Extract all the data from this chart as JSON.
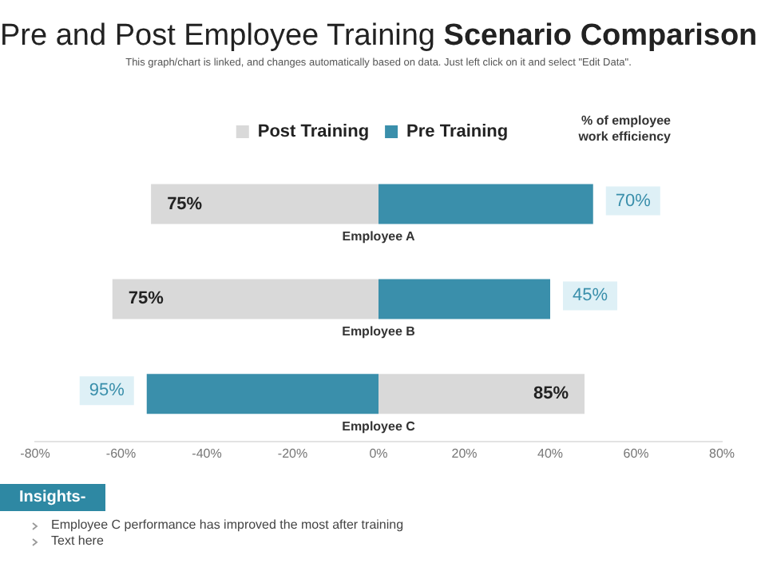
{
  "chart_data": {
    "type": "bar",
    "orientation": "horizontal",
    "stacked": true,
    "title": "Pre and Post Employee Training Scenario Comparison",
    "subtitle": "This graph/chart is linked, and changes automatically based on data. Just left click on it and select \"Edit Data\".",
    "categories": [
      "Employee A",
      "Employee B",
      "Employee C"
    ],
    "series": [
      {
        "name": "Post Training",
        "color": "#d9d9d9",
        "values": [
          -53,
          -62,
          48
        ]
      },
      {
        "name": "Pre Training",
        "color": "#3a8fab",
        "values": [
          50,
          40,
          -54
        ]
      }
    ],
    "xlim": [
      -80,
      80
    ],
    "xticks": [
      {
        "value": -80,
        "label": "-80%"
      },
      {
        "value": -60,
        "label": "-60%"
      },
      {
        "value": -40,
        "label": "-40%"
      },
      {
        "value": -20,
        "label": "-20%"
      },
      {
        "value": 0,
        "label": "0%"
      },
      {
        "value": 20,
        "label": "20%"
      },
      {
        "value": 40,
        "label": "40%"
      },
      {
        "value": 60,
        "label": "60%"
      },
      {
        "value": 80,
        "label": "80%"
      }
    ],
    "legend": "top",
    "grid": false,
    "annotations": [
      "% of employee work efficiency",
      "Insights-",
      "Employee C performance has improved the most after training",
      "Text here",
      "75%",
      "70%",
      "75%",
      "45%",
      "85%",
      "95%"
    ]
  }
}
